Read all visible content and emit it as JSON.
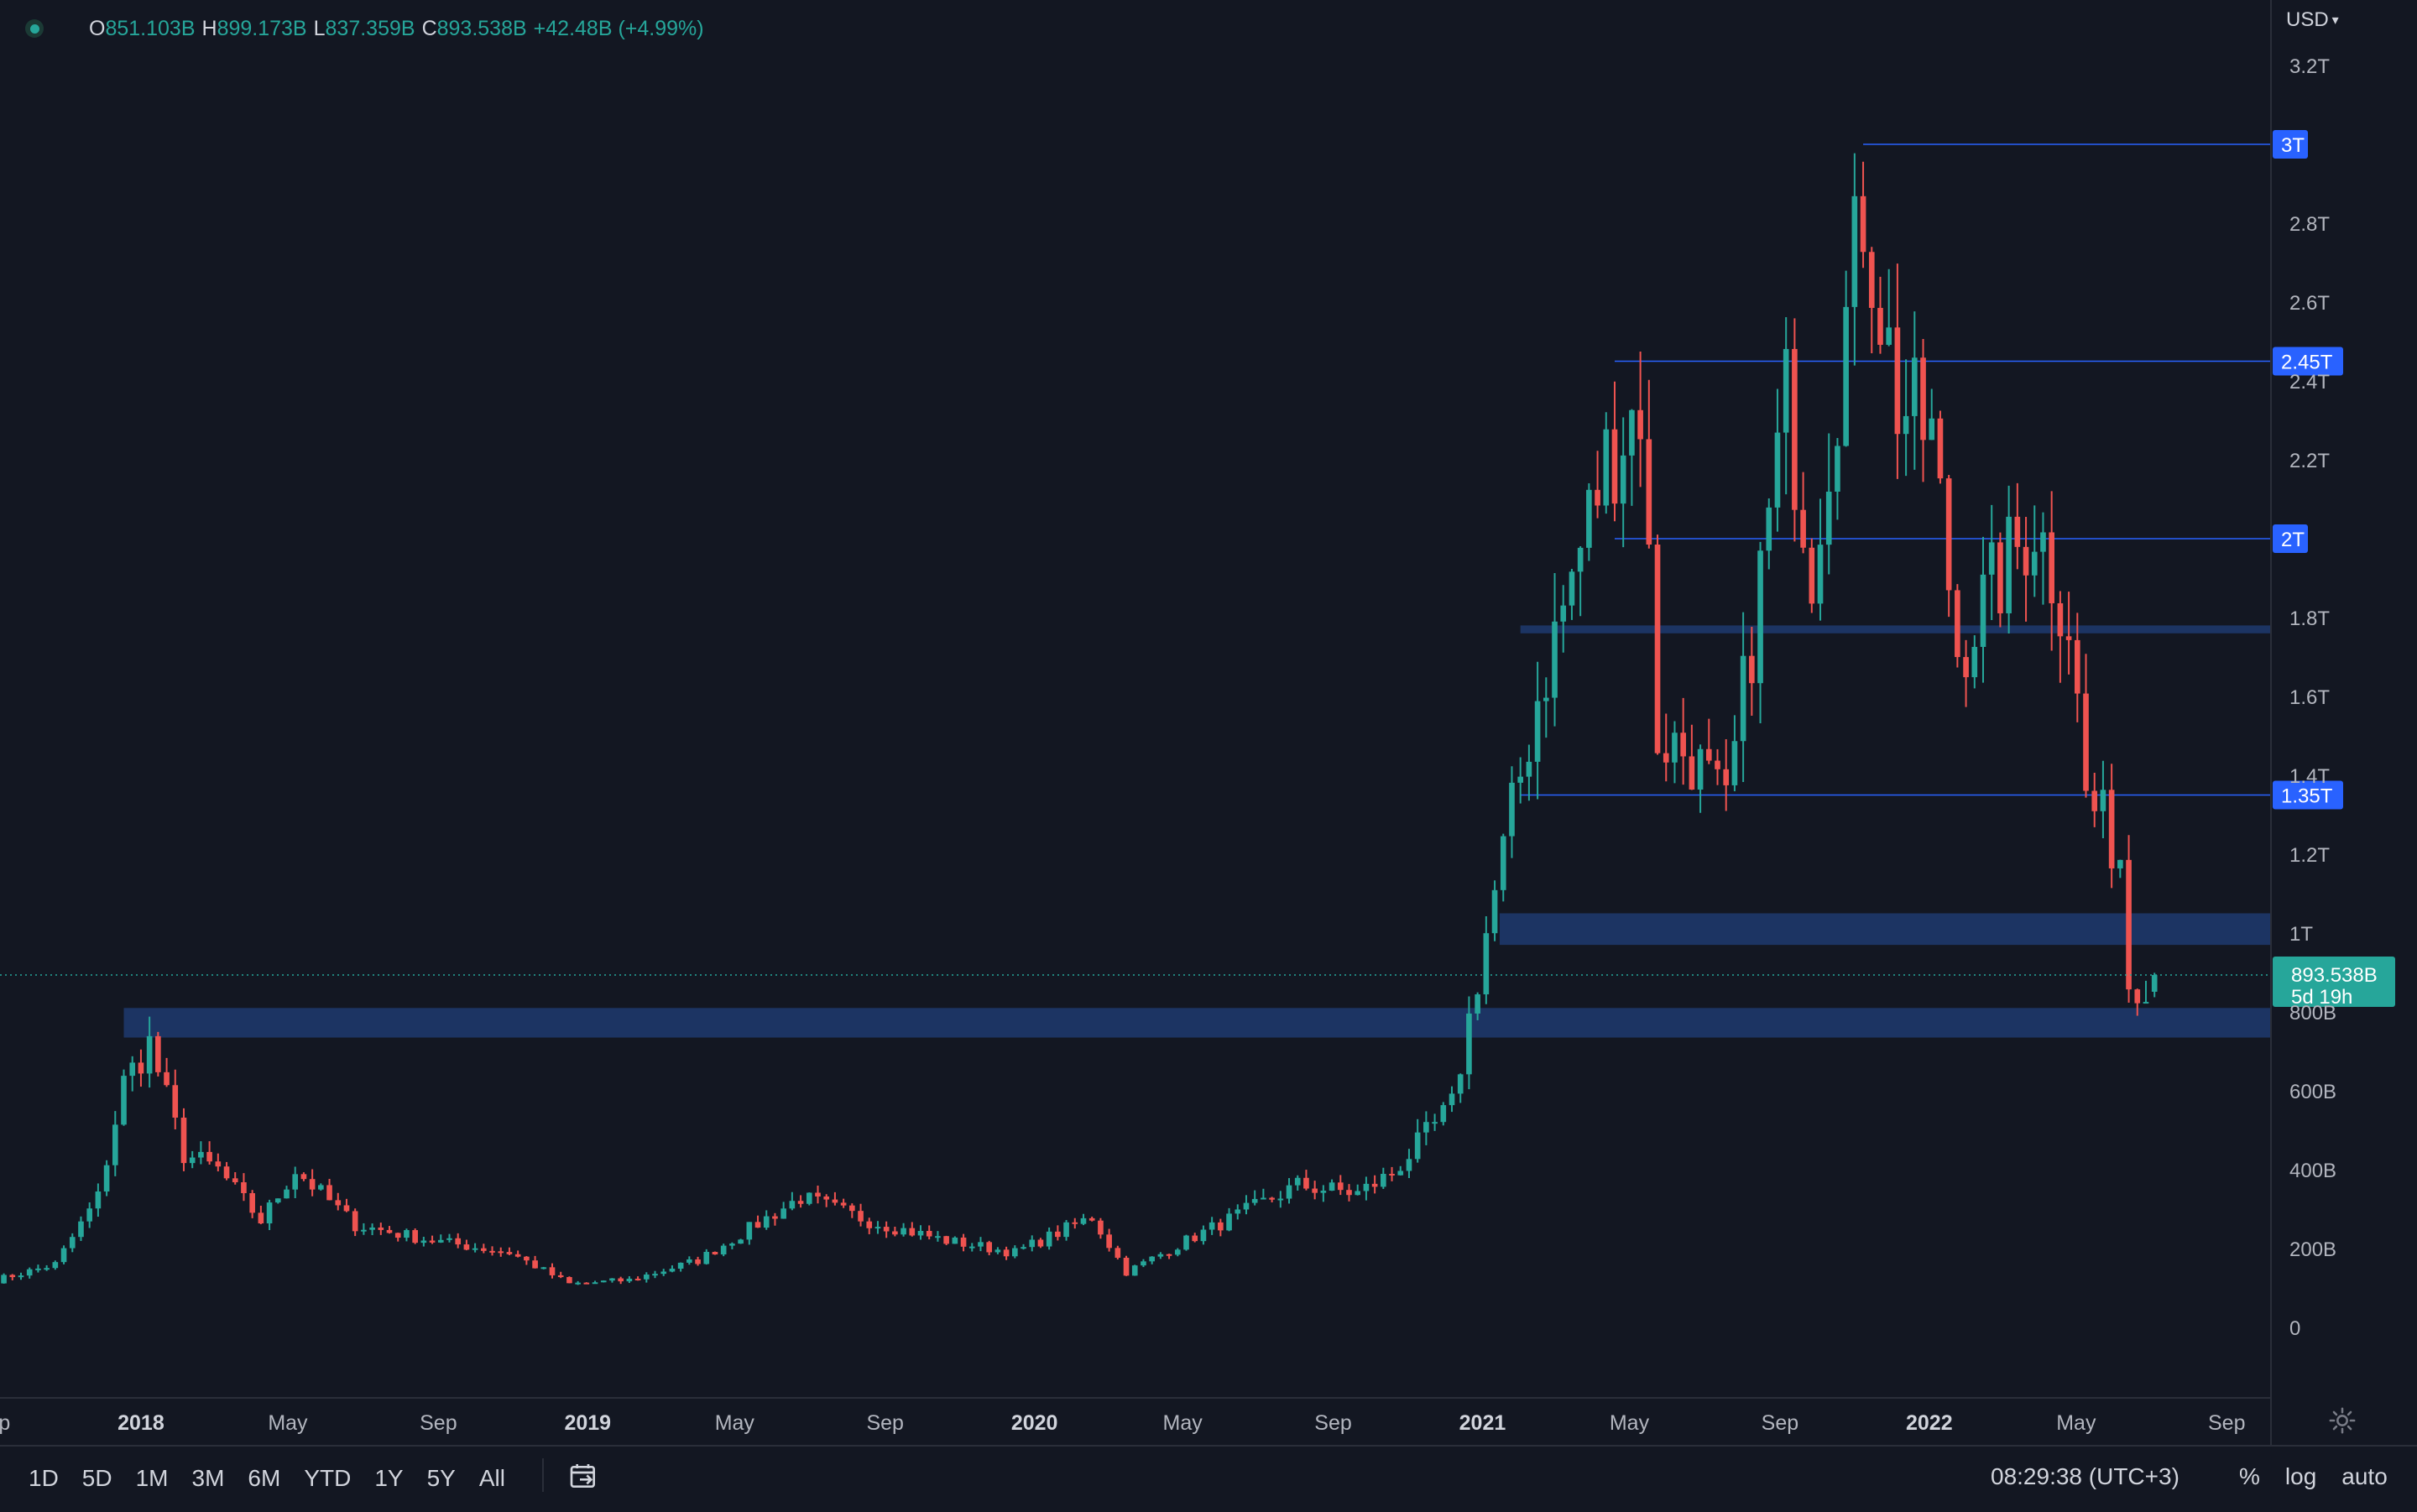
{
  "header": {
    "o_label": "O",
    "o_value": "851.103B",
    "h_label": "H",
    "h_value": "899.173B",
    "l_label": "L",
    "l_value": "837.359B",
    "c_label": "C",
    "c_value": "893.538B",
    "change": "+42.48B (+4.99%)",
    "status_icon": "live-dot-icon"
  },
  "currency": {
    "label": "USD",
    "icon": "chevron-down-icon"
  },
  "toolbar": {
    "ranges": [
      "1D",
      "5D",
      "1M",
      "3M",
      "6M",
      "YTD",
      "1Y",
      "5Y",
      "All"
    ],
    "date_range_icon": "calendar-goto-icon",
    "clock": "08:29:38 (UTC+3)",
    "percent": "%",
    "log": "log",
    "auto": "auto",
    "settings_icon": "gear-icon"
  },
  "price_badge": {
    "value": "893.538B",
    "countdown": "5d 19h"
  },
  "colors": {
    "background": "#131722",
    "up": "#26a69a",
    "down": "#ef5350",
    "zone": "#1f3a6e",
    "level_line": "#2962ff",
    "level_label_bg": "#2962ff"
  },
  "chart_data": {
    "type": "candlestick",
    "unit": "USD",
    "ylim": [
      0,
      3.2
    ],
    "y_ticks": [
      {
        "value": 3.2,
        "label": "3.2T"
      },
      {
        "value": 2.8,
        "label": "2.8T"
      },
      {
        "value": 2.6,
        "label": "2.6T"
      },
      {
        "value": 2.4,
        "label": "2.4T"
      },
      {
        "value": 2.2,
        "label": "2.2T"
      },
      {
        "value": 1.8,
        "label": "1.8T"
      },
      {
        "value": 1.6,
        "label": "1.6T"
      },
      {
        "value": 1.4,
        "label": "1.4T"
      },
      {
        "value": 1.2,
        "label": "1.2T"
      },
      {
        "value": 1.0,
        "label": "1T"
      },
      {
        "value": 0.8,
        "label": "800B"
      },
      {
        "value": 0.6,
        "label": "600B"
      },
      {
        "value": 0.4,
        "label": "400B"
      },
      {
        "value": 0.2,
        "label": "200B"
      },
      {
        "value": 0.0,
        "label": "0"
      }
    ],
    "x_range": [
      "2017-09-01",
      "2022-10-01"
    ],
    "x_ticks": [
      {
        "date": "2017-09-01",
        "label": "Sep",
        "bold": false
      },
      {
        "date": "2018-01-01",
        "label": "2018",
        "bold": true
      },
      {
        "date": "2018-05-01",
        "label": "May",
        "bold": false
      },
      {
        "date": "2018-09-01",
        "label": "Sep",
        "bold": false
      },
      {
        "date": "2019-01-01",
        "label": "2019",
        "bold": true
      },
      {
        "date": "2019-05-01",
        "label": "May",
        "bold": false
      },
      {
        "date": "2019-09-01",
        "label": "Sep",
        "bold": false
      },
      {
        "date": "2020-01-01",
        "label": "2020",
        "bold": true
      },
      {
        "date": "2020-05-01",
        "label": "May",
        "bold": false
      },
      {
        "date": "2020-09-01",
        "label": "Sep",
        "bold": false
      },
      {
        "date": "2021-01-01",
        "label": "2021",
        "bold": true
      },
      {
        "date": "2021-05-01",
        "label": "May",
        "bold": false
      },
      {
        "date": "2021-09-01",
        "label": "Sep",
        "bold": false
      },
      {
        "date": "2022-01-01",
        "label": "2022",
        "bold": true
      },
      {
        "date": "2022-05-01",
        "label": "May",
        "bold": false
      },
      {
        "date": "2022-09-01",
        "label": "Sep",
        "bold": false
      }
    ],
    "levels": [
      {
        "value": 3.0,
        "label": "3T",
        "start": "2021-11-08"
      },
      {
        "value": 2.45,
        "label": "2.45T",
        "start": "2021-04-19"
      },
      {
        "value": 2.0,
        "label": "2T",
        "start": "2021-04-19"
      },
      {
        "value": 1.35,
        "label": "1.35T",
        "start": "2021-02-01"
      }
    ],
    "zones": [
      {
        "low": 1.76,
        "high": 1.78,
        "start": "2021-02-01"
      },
      {
        "low": 0.97,
        "high": 1.05,
        "start": "2021-01-15"
      },
      {
        "low": 0.735,
        "high": 0.81,
        "start": "2017-12-18"
      }
    ],
    "last_price": 0.893538,
    "anchors": [
      [
        "2017-09-04",
        0.12
      ],
      [
        "2017-10-23",
        0.16
      ],
      [
        "2017-11-27",
        0.33
      ],
      [
        "2017-12-18",
        0.62
      ],
      [
        "2018-01-08",
        0.72
      ],
      [
        "2018-02-05",
        0.44
      ],
      [
        "2018-03-05",
        0.4
      ],
      [
        "2018-04-09",
        0.27
      ],
      [
        "2018-05-07",
        0.4
      ],
      [
        "2018-06-25",
        0.26
      ],
      [
        "2018-08-27",
        0.22
      ],
      [
        "2018-10-29",
        0.19
      ],
      [
        "2018-12-17",
        0.11
      ],
      [
        "2019-02-04",
        0.12
      ],
      [
        "2019-04-01",
        0.17
      ],
      [
        "2019-06-24",
        0.33
      ],
      [
        "2019-08-19",
        0.27
      ],
      [
        "2019-10-21",
        0.22
      ],
      [
        "2019-12-16",
        0.19
      ],
      [
        "2020-02-17",
        0.28
      ],
      [
        "2020-03-16",
        0.14
      ],
      [
        "2020-05-04",
        0.22
      ],
      [
        "2020-08-03",
        0.36
      ],
      [
        "2020-09-21",
        0.34
      ],
      [
        "2020-10-19",
        0.39
      ],
      [
        "2020-12-07",
        0.56
      ],
      [
        "2021-01-04",
        1.0
      ],
      [
        "2021-02-15",
        1.6
      ],
      [
        "2021-04-12",
        2.2
      ],
      [
        "2021-05-10",
        2.35
      ],
      [
        "2021-05-24",
        1.5
      ],
      [
        "2021-06-21",
        1.45
      ],
      [
        "2021-07-19",
        1.3
      ],
      [
        "2021-09-06",
        2.35
      ],
      [
        "2021-09-27",
        1.95
      ],
      [
        "2021-10-25",
        2.55
      ],
      [
        "2021-11-08",
        2.85
      ],
      [
        "2021-12-06",
        2.35
      ],
      [
        "2022-01-03",
        2.25
      ],
      [
        "2022-01-24",
        1.72
      ],
      [
        "2022-03-28",
        2.05
      ],
      [
        "2022-04-25",
        1.8
      ],
      [
        "2022-05-09",
        1.35
      ],
      [
        "2022-06-06",
        1.2
      ],
      [
        "2022-06-13",
        0.88
      ],
      [
        "2022-07-04",
        0.89
      ]
    ],
    "last_candle": {
      "open": 0.851103,
      "high": 0.899173,
      "low": 0.837359,
      "close": 0.893538
    }
  }
}
